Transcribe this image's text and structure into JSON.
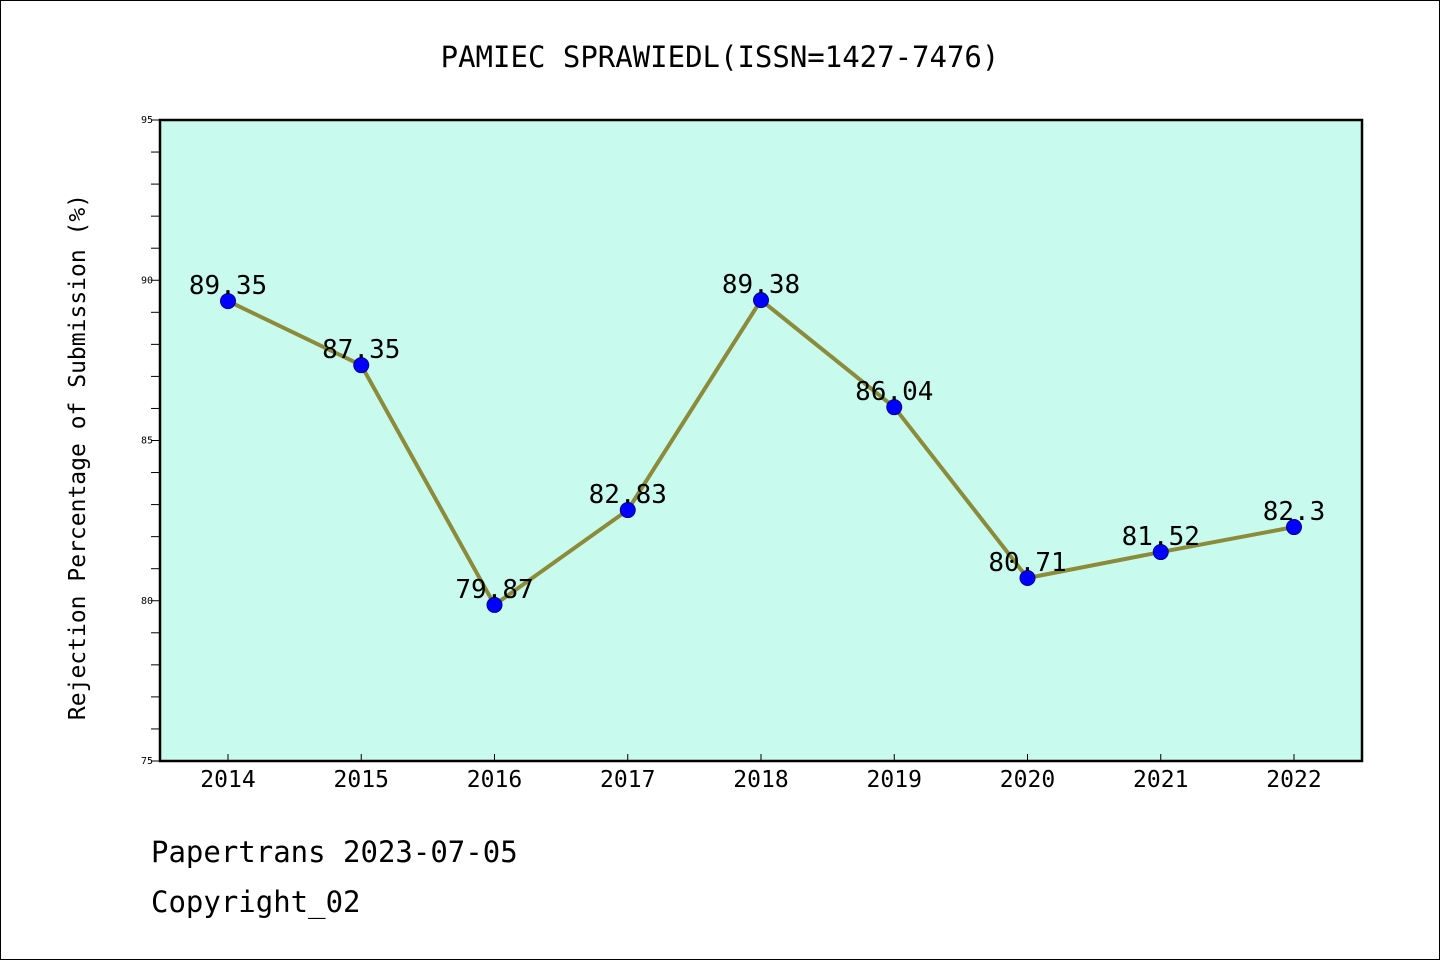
{
  "chart_data": {
    "type": "line",
    "title": "PAMIEC SPRAWIEDL(ISSN=1427-7476)",
    "ylabel": "Rejection Percentage of Submission (%)",
    "xlabel": "",
    "categories": [
      "2014",
      "2015",
      "2016",
      "2017",
      "2018",
      "2019",
      "2020",
      "2021",
      "2022"
    ],
    "series": [
      {
        "values": [
          89.35,
          87.35,
          79.87,
          82.83,
          89.38,
          86.04,
          80.71,
          81.52,
          82.3
        ],
        "labels": [
          "89.35",
          "87.35",
          "79.87",
          "82.83",
          "89.38",
          "86.04",
          "80.71",
          "81.52",
          "82.3"
        ]
      }
    ],
    "ylim": [
      75,
      95
    ],
    "yticks": [
      "75",
      "80",
      "85",
      "90",
      "95"
    ],
    "grid": false,
    "colors": {
      "plot_background": "#c8fbee",
      "line": "#8b8b3a",
      "marker": "#0000ff"
    }
  },
  "footer": {
    "line1": "Papertrans 2023-07-05",
    "line2": "Copyright_02"
  }
}
